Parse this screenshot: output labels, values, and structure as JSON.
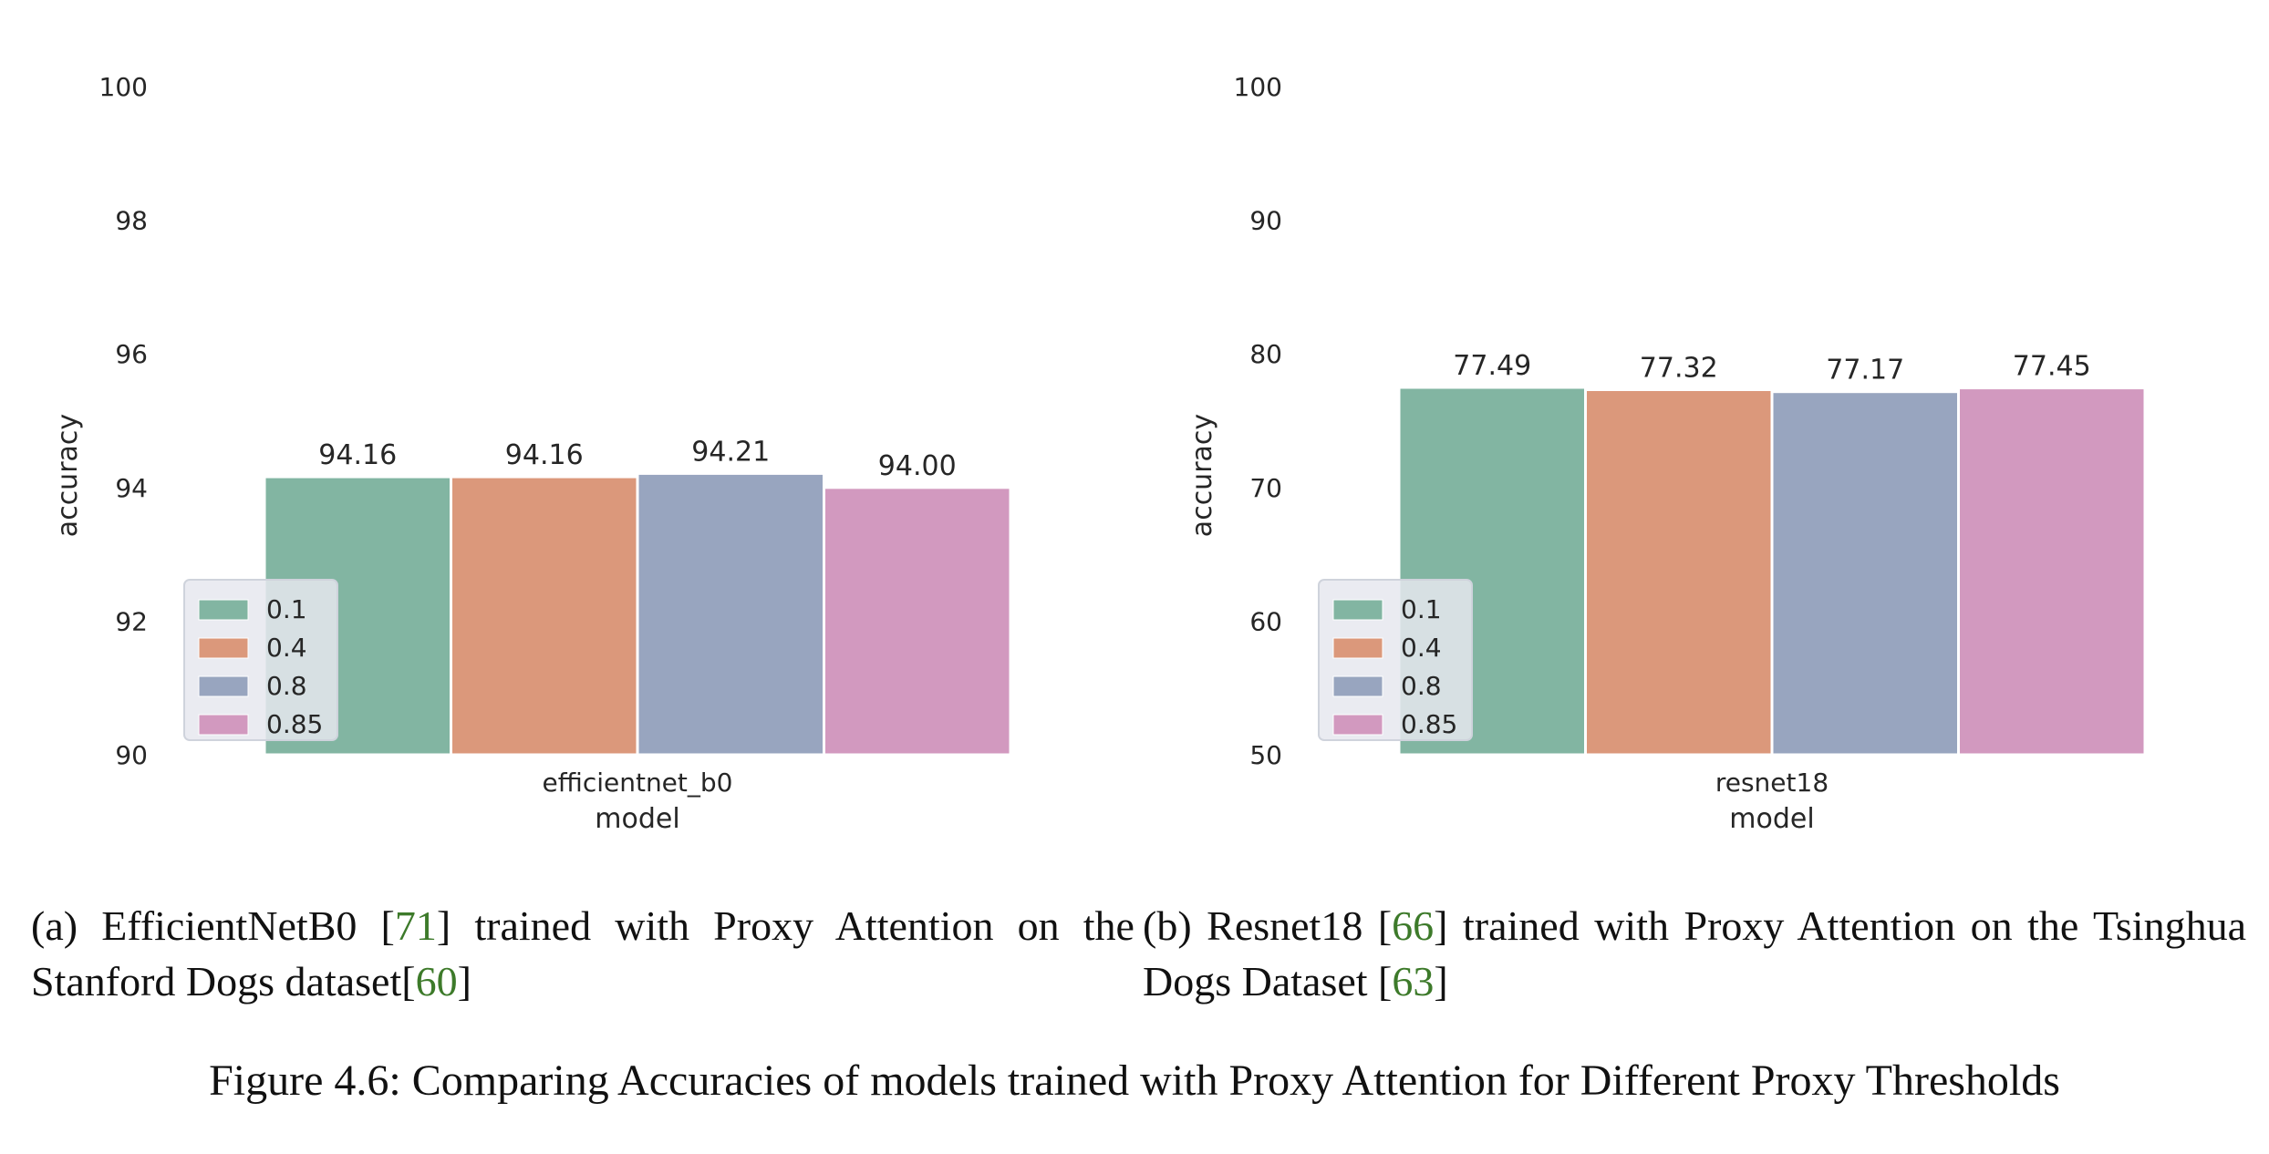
{
  "chart_data": [
    {
      "type": "bar",
      "categories": [
        "efficientnet_b0"
      ],
      "series": [
        {
          "name": "0.1",
          "values": [
            94.16
          ],
          "color": "#82b5a2"
        },
        {
          "name": "0.4",
          "values": [
            94.16
          ],
          "color": "#db987b"
        },
        {
          "name": "0.8",
          "values": [
            94.21
          ],
          "color": "#98a5bf"
        },
        {
          "name": "0.85",
          "values": [
            94.0
          ],
          "color": "#d299bf"
        }
      ],
      "data_labels": [
        "94.16",
        "94.16",
        "94.21",
        "94.00"
      ],
      "xlabel": "model",
      "ylabel": "accuracy",
      "ylim": [
        90,
        100
      ],
      "yticks": [
        "90",
        "92",
        "94",
        "96",
        "98",
        "100"
      ],
      "grid": false,
      "legend_position": "lower-left"
    },
    {
      "type": "bar",
      "categories": [
        "resnet18"
      ],
      "series": [
        {
          "name": "0.1",
          "values": [
            77.49
          ],
          "color": "#82b5a2"
        },
        {
          "name": "0.4",
          "values": [
            77.32
          ],
          "color": "#db987b"
        },
        {
          "name": "0.8",
          "values": [
            77.17
          ],
          "color": "#98a5bf"
        },
        {
          "name": "0.85",
          "values": [
            77.45
          ],
          "color": "#d299bf"
        }
      ],
      "data_labels": [
        "77.49",
        "77.32",
        "77.17",
        "77.45"
      ],
      "xlabel": "model",
      "ylabel": "accuracy",
      "ylim": [
        50,
        100
      ],
      "yticks": [
        "50",
        "60",
        "70",
        "80",
        "90",
        "100"
      ],
      "grid": false,
      "legend_position": "lower-left"
    }
  ],
  "captions": {
    "a": {
      "prefix": "(a) EfficientNetB0 [",
      "ref1": "71",
      "middle": "] trained with Proxy Attention on the Stanford Dogs dataset[",
      "ref2": "60",
      "suffix": "]"
    },
    "b": {
      "prefix": "(b) Resnet18 [",
      "ref1": "66",
      "middle": "] trained with Proxy Attention on the Tsinghua Dogs Dataset [",
      "ref2": "63",
      "suffix": "]"
    }
  },
  "figure_caption": "Figure 4.6: Comparing Accuracies of models trained with Proxy Attention for Different Proxy Thresholds"
}
